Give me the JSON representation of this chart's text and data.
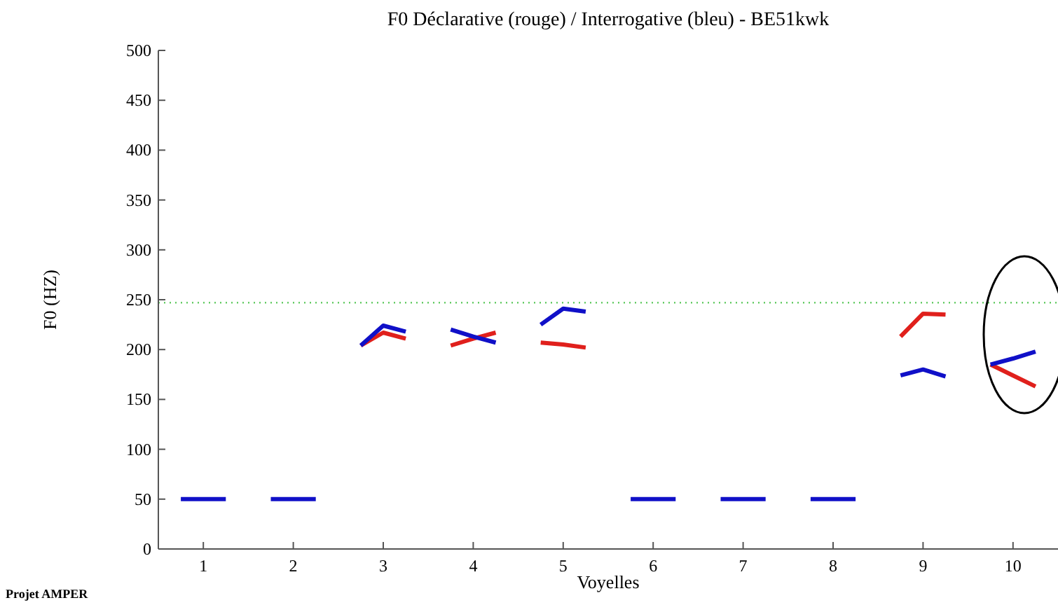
{
  "chart_data": {
    "type": "line",
    "title": "F0 Déclarative (rouge) / Interrogative (bleu) - BE51kwk",
    "xlabel": "Voyelles",
    "ylabel": "F0 (HZ)",
    "annotations": [
      "Projet AMPER"
    ],
    "xlim": [
      0.5,
      10.5
    ],
    "xticks": [
      1,
      2,
      3,
      4,
      5,
      6,
      7,
      8,
      9,
      10
    ],
    "ylim": [
      0,
      500
    ],
    "yticks": [
      0,
      50,
      100,
      150,
      200,
      250,
      300,
      350,
      400,
      450,
      500
    ],
    "grid": false,
    "marker": "none",
    "line_style": "solid",
    "ref_lines": [
      {
        "axis": "y",
        "value": 247,
        "color": "#66cc66",
        "line_style": "dotted"
      }
    ],
    "series": [
      {
        "color": "#e0201c",
        "x": [
          2.75,
          3,
          3.25,
          3.5,
          3.75,
          4,
          4.25,
          4.5,
          4.75,
          5,
          5.25,
          5.5,
          8.75,
          9,
          9.25,
          9.5,
          9.75,
          10,
          10.25
        ],
        "values": [
          204,
          217,
          211,
          null,
          204,
          211,
          217,
          null,
          207,
          205,
          202,
          null,
          213,
          236,
          235,
          null,
          185,
          174,
          163
        ]
      },
      {
        "color": "#1010c8",
        "x": [
          0.75,
          1,
          1.25,
          1.5,
          1.75,
          2,
          2.25,
          2.5,
          2.75,
          3,
          3.25,
          3.5,
          3.75,
          4,
          4.25,
          4.5,
          4.75,
          5,
          5.25,
          5.5,
          5.75,
          6,
          6.25,
          6.5,
          6.75,
          7,
          7.25,
          7.5,
          7.75,
          8,
          8.25,
          8.5,
          8.75,
          9,
          9.25,
          9.5,
          9.75,
          10,
          10.25
        ],
        "values": [
          50,
          50,
          50,
          null,
          50,
          50,
          50,
          null,
          204,
          224,
          218,
          null,
          220,
          213,
          207,
          null,
          225,
          241,
          238,
          null,
          50,
          50,
          50,
          null,
          50,
          50,
          50,
          null,
          50,
          50,
          50,
          null,
          174,
          180,
          173,
          null,
          185,
          191,
          198
        ]
      }
    ]
  }
}
